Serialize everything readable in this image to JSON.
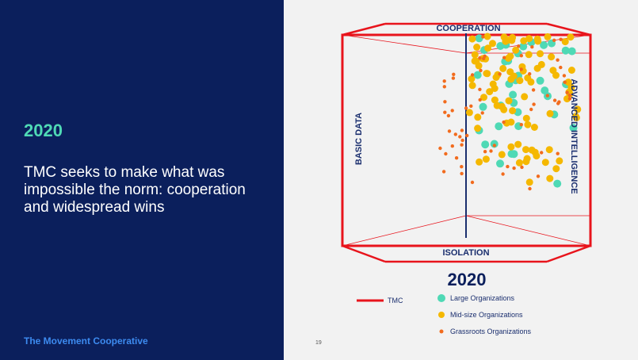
{
  "left_panel": {
    "year": "2020",
    "headline": "TMC seeks to make what was impossible the norm: cooperation and widespread wins",
    "brand": "The Movement Cooperative"
  },
  "slide": {
    "page_number": "19"
  },
  "diagram": {
    "axis_top": "COOPERATION",
    "axis_bottom": "ISOLATION",
    "axis_left": "BASIC DATA",
    "axis_right": "ADVANCED INTELLIGENCE",
    "year": "2020"
  },
  "legend": {
    "tmc": "TMC",
    "large": "Large Organizations",
    "mid": "Mid-size Organizations",
    "grassroots": "Grassroots Organizations"
  },
  "colors": {
    "navy": "#0b1f5c",
    "teal": "#4fd9b5",
    "yellow": "#f5b800",
    "orange": "#f26b1d",
    "red": "#e8141c",
    "axis": "#1a2e6e"
  }
}
